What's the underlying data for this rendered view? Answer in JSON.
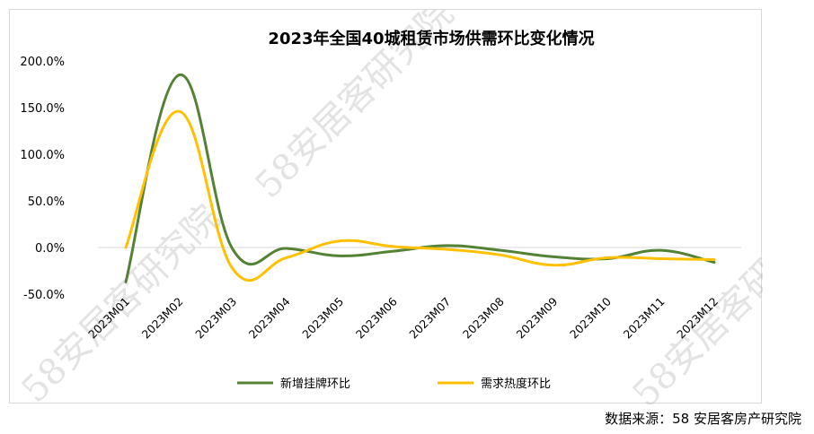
{
  "chart_data": {
    "type": "line",
    "title": "2023年全国40城租赁市场供需环比变化情况",
    "categories": [
      "2023M01",
      "2023M02",
      "2023M03",
      "2023M04",
      "2023M05",
      "2023M06",
      "2023M07",
      "2023M08",
      "2023M09",
      "2023M10",
      "2023M11",
      "2023M12"
    ],
    "series": [
      {
        "name": "新增挂牌环比",
        "color": "#548235",
        "values": [
          -37,
          185,
          -2,
          -1,
          -9,
          -4,
          2,
          -3,
          -10,
          -12,
          -3,
          -16
        ]
      },
      {
        "name": "需求热度环比",
        "color": "#FFC000",
        "values": [
          0,
          146,
          -23,
          -11,
          7,
          1,
          -2,
          -8,
          -19,
          -11,
          -12,
          -13
        ]
      }
    ],
    "yticks": [
      "200.0%",
      "150.0%",
      "100.0%",
      "50.0%",
      "0.0%",
      "-50.0%"
    ],
    "ylim": [
      -50,
      200
    ],
    "grid": false,
    "legend": "bottom"
  },
  "source_text": "数据来源：58 安居客房产研究院",
  "watermark_text": "58安居客研究院"
}
